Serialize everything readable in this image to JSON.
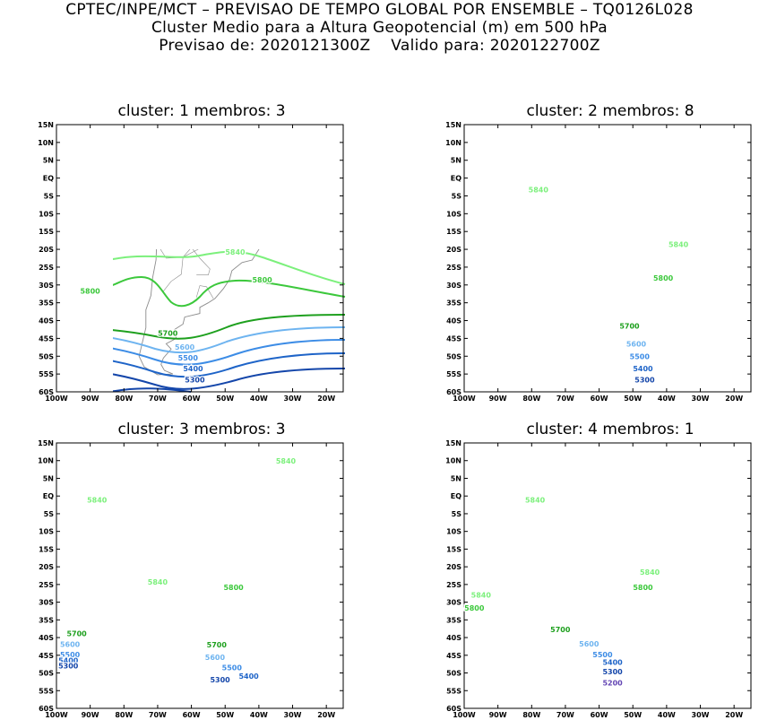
{
  "header": {
    "line1": "CPTEC/INPE/MCT – PREVISAO DE TEMPO GLOBAL POR ENSEMBLE – TQ0126L028",
    "line2": "Cluster Medio para a Altura Geopotencial (m) em 500 hPa",
    "line3": "Previsao de: 2020121300Z    Valido para: 2020122700Z"
  },
  "axes": {
    "lat_ticks": [
      "15N",
      "10N",
      "5N",
      "EQ",
      "5S",
      "10S",
      "15S",
      "20S",
      "25S",
      "30S",
      "35S",
      "40S",
      "45S",
      "50S",
      "55S",
      "60S"
    ],
    "lon_ticks": [
      "100W",
      "90W",
      "80W",
      "70W",
      "60W",
      "50W",
      "40W",
      "30W",
      "20W"
    ]
  },
  "colors": {
    "c5840": "#7cf07c",
    "c5800": "#3cc83c",
    "c5700": "#1ea01e",
    "c5600": "#6eb4f0",
    "c5500": "#3c8ce6",
    "c5400": "#1e64c8",
    "c5300": "#1446aa",
    "c5200": "#6446b4",
    "coast": "#8c8c8c"
  },
  "panels": [
    {
      "title": "cluster: 1   membros: 3",
      "labels": [
        {
          "text": "5840",
          "level": "c5840",
          "lon": -47,
          "lat": -21.5
        },
        {
          "text": "5800",
          "level": "c5800",
          "lon": -90,
          "lat": -32.5
        },
        {
          "text": "5800",
          "level": "c5800",
          "lon": -39,
          "lat": -29.3
        },
        {
          "text": "5700",
          "level": "c5700",
          "lon": -67,
          "lat": -44.3
        },
        {
          "text": "5600",
          "level": "c5600",
          "lon": -62,
          "lat": -48.2
        },
        {
          "text": "5500",
          "level": "c5500",
          "lon": -61,
          "lat": -51.2
        },
        {
          "text": "5400",
          "level": "c5400",
          "lon": -59.5,
          "lat": -54.2
        },
        {
          "text": "5300",
          "level": "c5300",
          "lon": -59,
          "lat": -57.4
        }
      ]
    },
    {
      "title": "cluster: 2   membros: 8",
      "labels": [
        {
          "text": "5840",
          "level": "c5840",
          "lon": -78,
          "lat": -4
        },
        {
          "text": "5840",
          "level": "c5840",
          "lon": -36.5,
          "lat": -19.4
        },
        {
          "text": "5800",
          "level": "c5800",
          "lon": -41,
          "lat": -28.8
        },
        {
          "text": "5700",
          "level": "c5700",
          "lon": -51,
          "lat": -42.3
        },
        {
          "text": "5600",
          "level": "c5600",
          "lon": -49,
          "lat": -47.3
        },
        {
          "text": "5500",
          "level": "c5500",
          "lon": -48,
          "lat": -50.8
        },
        {
          "text": "5400",
          "level": "c5400",
          "lon": -47,
          "lat": -54.2
        },
        {
          "text": "5300",
          "level": "c5300",
          "lon": -46.5,
          "lat": -57.3
        }
      ]
    },
    {
      "title": "cluster: 3   membros: 3",
      "labels": [
        {
          "text": "5840",
          "level": "c5840",
          "lon": -32,
          "lat": 9.2
        },
        {
          "text": "5840",
          "level": "c5840",
          "lon": -88,
          "lat": -1.8
        },
        {
          "text": "5840",
          "level": "c5840",
          "lon": -70,
          "lat": -25
        },
        {
          "text": "5800",
          "level": "c5800",
          "lon": -47.5,
          "lat": -26.5
        },
        {
          "text": "5700",
          "level": "c5700",
          "lon": -94,
          "lat": -39.6
        },
        {
          "text": "5700",
          "level": "c5700",
          "lon": -52.5,
          "lat": -42.8
        },
        {
          "text": "5600",
          "level": "c5600",
          "lon": -96,
          "lat": -42.7
        },
        {
          "text": "5600",
          "level": "c5600",
          "lon": -53,
          "lat": -46.3
        },
        {
          "text": "5500",
          "level": "c5500",
          "lon": -96,
          "lat": -45.6
        },
        {
          "text": "5500",
          "level": "c5500",
          "lon": -48,
          "lat": -49.2
        },
        {
          "text": "5400",
          "level": "c5400",
          "lon": -96.5,
          "lat": -47.2
        },
        {
          "text": "5400",
          "level": "c5400",
          "lon": -43,
          "lat": -51.6
        },
        {
          "text": "5300",
          "level": "c5300",
          "lon": -96.5,
          "lat": -48.7
        },
        {
          "text": "5300",
          "level": "c5300",
          "lon": -51.5,
          "lat": -52.7
        }
      ]
    },
    {
      "title": "cluster: 4   membros: 1",
      "labels": [
        {
          "text": "5840",
          "level": "c5840",
          "lon": -79,
          "lat": -1.8
        },
        {
          "text": "5840",
          "level": "c5840",
          "lon": -45,
          "lat": -22.2
        },
        {
          "text": "5840",
          "level": "c5840",
          "lon": -95,
          "lat": -28.7
        },
        {
          "text": "5800",
          "level": "c5800",
          "lon": -47,
          "lat": -26.5
        },
        {
          "text": "5800",
          "level": "c5800",
          "lon": -97,
          "lat": -32.4
        },
        {
          "text": "5700",
          "level": "c5700",
          "lon": -71.5,
          "lat": -38.5
        },
        {
          "text": "5600",
          "level": "c5600",
          "lon": -63,
          "lat": -42.5
        },
        {
          "text": "5500",
          "level": "c5500",
          "lon": -59,
          "lat": -45.5
        },
        {
          "text": "5400",
          "level": "c5400",
          "lon": -56,
          "lat": -47.7
        },
        {
          "text": "5300",
          "level": "c5300",
          "lon": -56,
          "lat": -50.4
        },
        {
          "text": "5200",
          "level": "c5200",
          "lon": -56,
          "lat": -53.5
        }
      ]
    }
  ]
}
